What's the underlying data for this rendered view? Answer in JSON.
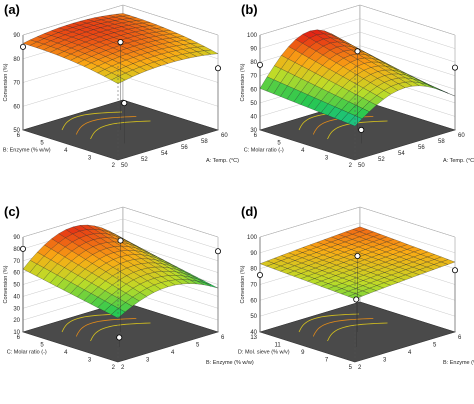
{
  "chart_data": [
    {
      "type": "surface3d",
      "panel_label": "(a)",
      "x_axis": {
        "label": "A: Temp. (°C)",
        "ticks": [
          "50",
          "52",
          "54",
          "56",
          "58",
          "60"
        ],
        "range": [
          50,
          60
        ]
      },
      "y_axis": {
        "label": "B: Enzyme (% w/w)",
        "ticks": [
          "2",
          "3",
          "4",
          "5",
          "6"
        ],
        "range": [
          2,
          6
        ]
      },
      "z_axis": {
        "label": "Conversion (%)",
        "ticks": [
          "50",
          "60",
          "70",
          "80",
          "90"
        ],
        "range": [
          50,
          90
        ]
      },
      "surface": {
        "description_points": [
          {
            "x": 50,
            "y": 2,
            "z": 72
          },
          {
            "x": 60,
            "y": 2,
            "z": 75
          },
          {
            "x": 50,
            "y": 6,
            "z": 85
          },
          {
            "x": 60,
            "y": 6,
            "z": 84
          },
          {
            "x": 55,
            "y": 4,
            "z": 89
          }
        ],
        "z_min": 68,
        "z_max": 90
      },
      "design_points": [
        {
          "x": 55,
          "y": 4,
          "z": 87
        },
        {
          "x": 60,
          "y": 2,
          "z": 76
        },
        {
          "x": 50,
          "y": 6,
          "z": 85
        },
        {
          "x": 53,
          "y": 3,
          "z": 67
        }
      ]
    },
    {
      "type": "surface3d",
      "panel_label": "(b)",
      "x_axis": {
        "label": "A: Temp. (°C)",
        "ticks": [
          "50",
          "52",
          "54",
          "56",
          "58",
          "60"
        ],
        "range": [
          50,
          60
        ]
      },
      "y_axis": {
        "label": "C: Molar ratio (-)",
        "ticks": [
          "2",
          "3",
          "4",
          "5",
          "6"
        ],
        "range": [
          2,
          6
        ]
      },
      "z_axis": {
        "label": "Conversion (%)",
        "ticks": [
          "30",
          "40",
          "50",
          "60",
          "70",
          "80",
          "90",
          "100"
        ],
        "range": [
          30,
          100
        ]
      },
      "surface": {
        "z_min": 35,
        "z_max": 92
      },
      "design_points": [
        {
          "x": 55,
          "y": 4,
          "z": 88
        },
        {
          "x": 50,
          "y": 6,
          "z": 78
        },
        {
          "x": 60,
          "y": 2,
          "z": 76
        },
        {
          "x": 53,
          "y": 3,
          "z": 40
        }
      ]
    },
    {
      "type": "surface3d",
      "panel_label": "(c)",
      "x_axis": {
        "label": "B: Enzyme (% w/w)",
        "ticks": [
          "2",
          "3",
          "4",
          "5",
          "6"
        ],
        "range": [
          2,
          6
        ]
      },
      "y_axis": {
        "label": "C: Molar ratio (-)",
        "ticks": [
          "2",
          "3",
          "4",
          "5",
          "6"
        ],
        "range": [
          2,
          6
        ]
      },
      "z_axis": {
        "label": "Conversion (%)",
        "ticks": [
          "10",
          "20",
          "30",
          "40",
          "50",
          "60",
          "70",
          "80",
          "90"
        ],
        "range": [
          10,
          90
        ]
      },
      "surface": {
        "z_min": 18,
        "z_max": 88
      },
      "design_points": [
        {
          "x": 4,
          "y": 4,
          "z": 87
        },
        {
          "x": 2,
          "y": 6,
          "z": 80
        },
        {
          "x": 6,
          "y": 2,
          "z": 78
        },
        {
          "x": 3,
          "y": 3,
          "z": 18
        }
      ]
    },
    {
      "type": "surface3d",
      "panel_label": "(d)",
      "x_axis": {
        "label": "B: Enzyme (% w/w)",
        "ticks": [
          "2",
          "3",
          "4",
          "5",
          "6"
        ],
        "range": [
          2,
          6
        ]
      },
      "y_axis": {
        "label": "D: Mol. sieve (% w/v)",
        "ticks": [
          "5",
          "7",
          "9",
          "11",
          "13"
        ],
        "range": [
          5,
          13
        ]
      },
      "z_axis": {
        "label": "Conversion (%)",
        "ticks": [
          "40",
          "50",
          "60",
          "70",
          "80",
          "90",
          "100"
        ],
        "range": [
          40,
          100
        ]
      },
      "surface": {
        "z_min": 68,
        "z_max": 90
      },
      "design_points": [
        {
          "x": 4,
          "y": 9,
          "z": 88
        },
        {
          "x": 2,
          "y": 13,
          "z": 76
        },
        {
          "x": 6,
          "y": 5,
          "z": 79
        },
        {
          "x": 3,
          "y": 7,
          "z": 70
        }
      ]
    }
  ]
}
